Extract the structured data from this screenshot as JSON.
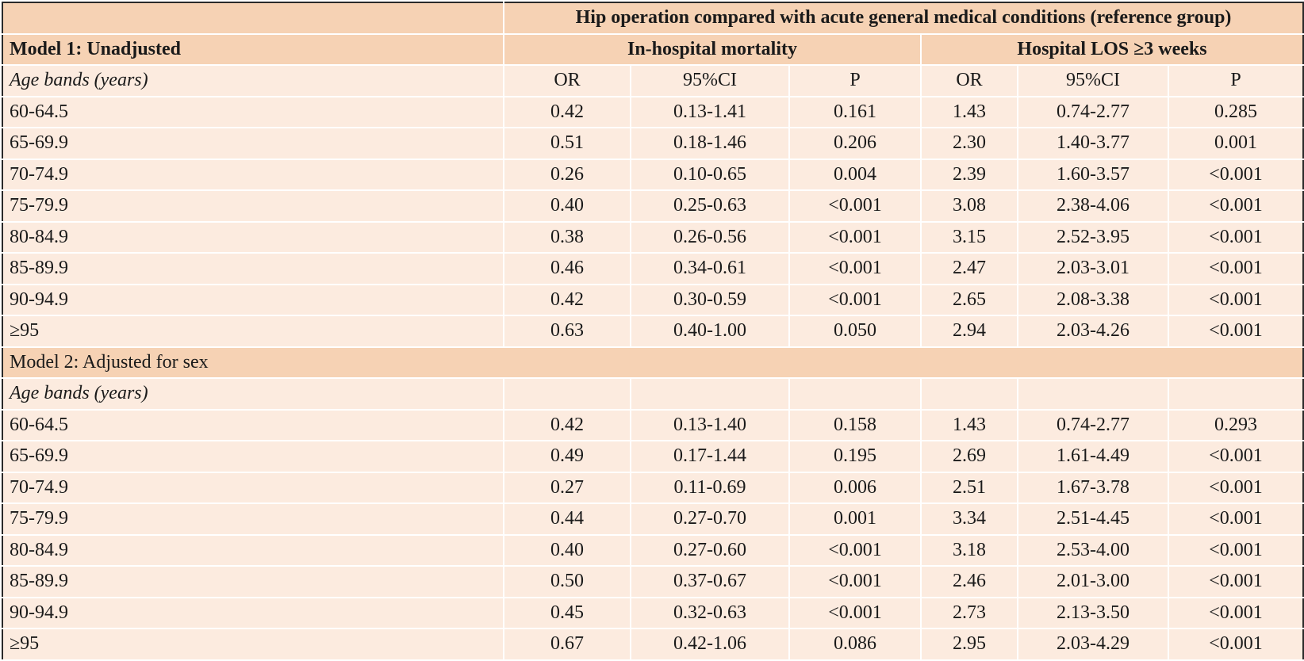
{
  "table": {
    "header": {
      "title": "Hip operation compared with acute general medical conditions (reference group)",
      "model1_label": "Model 1: Unadjusted",
      "group1": "In-hospital mortality",
      "group2": "Hospital LOS ≥3 weeks"
    },
    "columns": {
      "age_label": "Age bands (years)",
      "or": "OR",
      "ci": "95%CI",
      "p": "P"
    },
    "model1_rows": [
      [
        "60-64.5",
        "0.42",
        "0.13-1.41",
        "0.161",
        "1.43",
        "0.74-2.77",
        "0.285"
      ],
      [
        "65-69.9",
        "0.51",
        "0.18-1.46",
        "0.206",
        "2.30",
        "1.40-3.77",
        "0.001"
      ],
      [
        "70-74.9",
        "0.26",
        "0.10-0.65",
        "0.004",
        "2.39",
        "1.60-3.57",
        "<0.001"
      ],
      [
        "75-79.9",
        "0.40",
        "0.25-0.63",
        "<0.001",
        "3.08",
        "2.38-4.06",
        "<0.001"
      ],
      [
        "80-84.9",
        "0.38",
        "0.26-0.56",
        "<0.001",
        "3.15",
        "2.52-3.95",
        "<0.001"
      ],
      [
        "85-89.9",
        "0.46",
        "0.34-0.61",
        "<0.001",
        "2.47",
        "2.03-3.01",
        "<0.001"
      ],
      [
        "90-94.9",
        "0.42",
        "0.30-0.59",
        "<0.001",
        "2.65",
        "2.08-3.38",
        "<0.001"
      ],
      [
        "≥95",
        "0.63",
        "0.40-1.00",
        "0.050",
        "2.94",
        "2.03-4.26",
        "<0.001"
      ]
    ],
    "model2_label": "Model 2: Adjusted for sex",
    "model2_age_label": "Age bands (years)",
    "model2_rows": [
      [
        "60-64.5",
        "0.42",
        "0.13-1.40",
        "0.158",
        "1.43",
        "0.74-2.77",
        "0.293"
      ],
      [
        "65-69.9",
        "0.49",
        "0.17-1.44",
        "0.195",
        "2.69",
        "1.61-4.49",
        "<0.001"
      ],
      [
        "70-74.9",
        "0.27",
        "0.11-0.69",
        "0.006",
        "2.51",
        "1.67-3.78",
        "<0.001"
      ],
      [
        "75-79.9",
        "0.44",
        "0.27-0.70",
        "0.001",
        "3.34",
        "2.51-4.45",
        "<0.001"
      ],
      [
        "80-84.9",
        "0.40",
        "0.27-0.60",
        "<0.001",
        "3.18",
        "2.53-4.00",
        "<0.001"
      ],
      [
        "85-89.9",
        "0.50",
        "0.37-0.67",
        "<0.001",
        "2.46",
        "2.01-3.00",
        "<0.001"
      ],
      [
        "90-94.9",
        "0.45",
        "0.32-0.63",
        "<0.001",
        "2.73",
        "2.13-3.50",
        "<0.001"
      ],
      [
        "≥95",
        "0.67",
        "0.42-1.06",
        "0.086",
        "2.95",
        "2.03-4.29",
        "<0.001"
      ]
    ]
  }
}
